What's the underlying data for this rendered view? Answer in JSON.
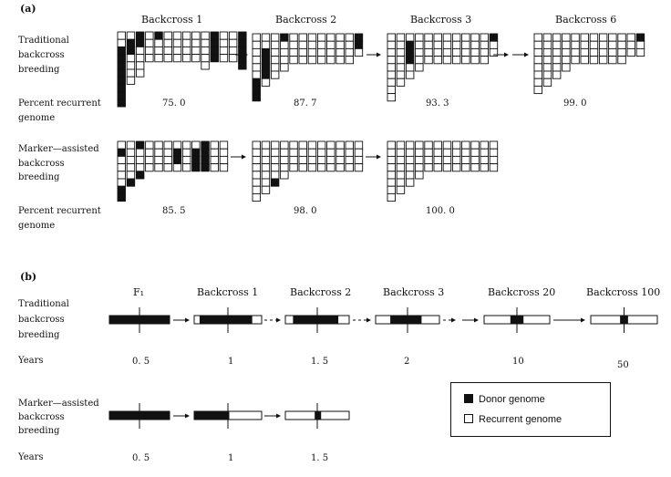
{
  "panel_a": {
    "label": "(a)",
    "traditional": {
      "row_label": [
        "Traditional",
        "backcross",
        "breeding"
      ],
      "headers": [
        "Backcross 1",
        "Backcross 2",
        "Backcross 3",
        "Backcross 6"
      ],
      "percent_label": [
        "Percent recurrent",
        "genome"
      ],
      "percents": [
        "75. 0",
        "87. 7",
        "93. 3",
        "99. 0"
      ]
    },
    "marker": {
      "row_label": [
        "Marker—assisted",
        "backcross",
        "breeding"
      ],
      "percent_label": [
        "Percent recurrent",
        "genome"
      ],
      "percents": [
        "85. 5",
        "98. 0",
        "100. 0"
      ]
    }
  },
  "panel_b": {
    "label": "(b)",
    "traditional": {
      "row_label": [
        "Traditional",
        "backcross",
        "breeding"
      ],
      "headers": [
        "F₁",
        "Backcross 1",
        "Backcross 2",
        "Backcross 3",
        "Backcross 20",
        "Backcross 100"
      ],
      "years_label": "Years",
      "years": [
        "0. 5",
        "1",
        "1. 5",
        "2",
        "10",
        "50"
      ]
    },
    "marker": {
      "row_label": [
        "Marker—assisted",
        "backcross",
        "breeding"
      ],
      "years_label": "Years",
      "years": [
        "0. 5",
        "1",
        "1. 5"
      ]
    }
  },
  "legend": {
    "donor": "Donor genome",
    "recurrent": "Recurrent genome"
  },
  "colors": {
    "donor": "#111111",
    "recurrent": "#ffffff",
    "outline": "#111111"
  }
}
